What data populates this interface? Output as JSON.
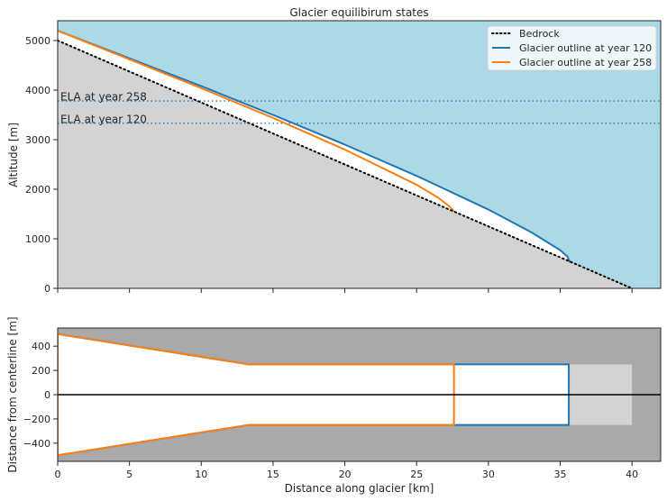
{
  "chart_data": [
    {
      "type": "line",
      "title": "Glacier equilibirum states",
      "xlabel": "",
      "ylabel": "Altitude [m]",
      "xlim": [
        0,
        42
      ],
      "ylim": [
        0,
        5400
      ],
      "x_ticks": [
        0,
        5,
        10,
        15,
        20,
        25,
        30,
        35,
        40
      ],
      "y_ticks": [
        0,
        1000,
        2000,
        3000,
        4000,
        5000
      ],
      "y_tick_labels": [
        "0",
        "1000",
        "2000",
        "3000",
        "4000",
        "5000"
      ],
      "background_color": "#add8e6",
      "bed_fill_color": "#d3d3d3",
      "legend_position": "top-right",
      "series": [
        {
          "name": "Bedrock",
          "color": "#000000",
          "style": "dotted",
          "x": [
            0,
            40
          ],
          "y": [
            5000,
            0
          ]
        },
        {
          "name": "Glacier outline at year 120",
          "color": "#1f77b4",
          "style": "solid",
          "x": [
            0,
            5,
            10,
            15,
            20,
            25,
            30,
            33,
            35,
            35.5,
            35.7
          ],
          "y": [
            5200,
            4640,
            4080,
            3500,
            2900,
            2270,
            1590,
            1130,
            770,
            640,
            520
          ]
        },
        {
          "name": "Glacier outline at year 258",
          "color": "#ff7f0e",
          "style": "solid",
          "x": [
            0,
            5,
            10,
            15,
            20,
            25,
            26.5,
            27.3,
            27.6
          ],
          "y": [
            5200,
            4620,
            4040,
            3440,
            2800,
            2090,
            1830,
            1650,
            1550
          ]
        }
      ],
      "hlines": [
        {
          "y": 3780,
          "label": "ELA at year 258",
          "color": "#1f77b4",
          "style": "dotted"
        },
        {
          "y": 3330,
          "label": "ELA at year 120",
          "color": "#1f77b4",
          "style": "dotted"
        }
      ]
    },
    {
      "type": "area",
      "title": "",
      "xlabel": "Distance along glacier [km]",
      "ylabel": "Distance from centerline [m]",
      "xlim": [
        0,
        42
      ],
      "ylim": [
        -550,
        550
      ],
      "x_ticks": [
        0,
        5,
        10,
        15,
        20,
        25,
        30,
        35,
        40
      ],
      "x_tick_labels": [
        "0",
        "5",
        "10",
        "15",
        "20",
        "25",
        "30",
        "35",
        "40"
      ],
      "y_ticks": [
        -400,
        -200,
        0,
        200,
        400
      ],
      "y_tick_labels": [
        "−400",
        "−200",
        "0",
        "200",
        "400"
      ],
      "background_color": "#a9a9a9",
      "valley_fill_color": "#d3d3d3",
      "centerline_color": "#000000",
      "valley": {
        "x": [
          0,
          13.3,
          40
        ],
        "half_width": [
          500,
          250,
          250
        ]
      },
      "outlines": [
        {
          "name": "Glacier outline at year 120",
          "color": "#1f77b4",
          "terminus": 35.6
        },
        {
          "name": "Glacier outline at year 258",
          "color": "#ff7f0e",
          "terminus": 27.6
        }
      ]
    }
  ]
}
